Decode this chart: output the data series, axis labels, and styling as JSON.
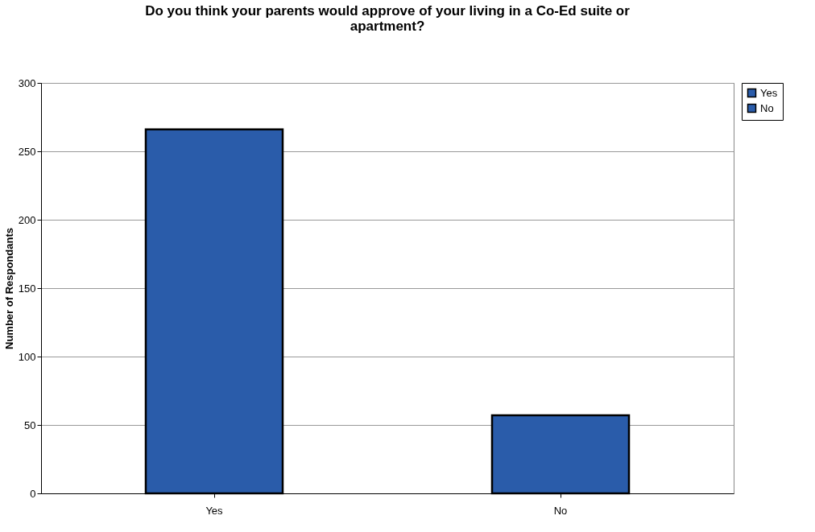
{
  "chart_data": {
    "type": "bar",
    "title": "Do you think your parents would approve of your living in a Co-Ed suite or apartment?",
    "ylabel": "Number of Respondants",
    "categories": [
      "Yes",
      "No"
    ],
    "series": [
      {
        "name": "Yes",
        "color": "#2a5caa",
        "values": [
          266,
          null
        ]
      },
      {
        "name": "No",
        "color": "#2a5caa",
        "values": [
          null,
          57
        ]
      }
    ],
    "ylim": [
      0,
      300
    ],
    "yticks": [
      0,
      50,
      100,
      150,
      200,
      250,
      300
    ],
    "grid": "y",
    "legend": "right"
  }
}
